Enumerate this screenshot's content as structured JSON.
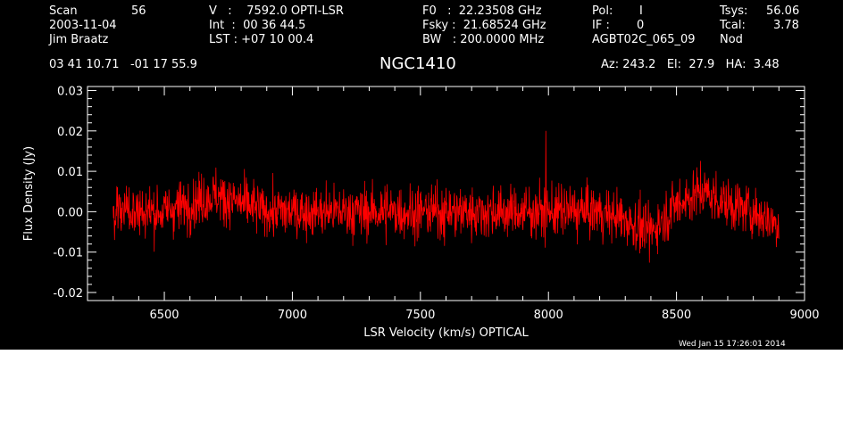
{
  "header": {
    "scan_label": "Scan",
    "scan_value": "56",
    "date": "2003-11-04",
    "observer": "Jim Braatz",
    "coords": "03 41 10.71   -01 17 55.9",
    "v_line": "V   :    7592.0 OPTI-LSR",
    "int_line": "Int  :  00 36 44.5",
    "lst_line": "LST : +07 10 00.4",
    "f0_line": "F0   :  22.23508 GHz",
    "fsky_line": "Fsky :  21.68524 GHz",
    "bw_line": "BW   : 200.0000 MHz",
    "pol_label": "Pol:",
    "pol_value": "I",
    "if_label": "IF :",
    "if_value": "0",
    "project": "AGBT02C_065_09",
    "tsys_label": "Tsys:",
    "tsys_value": "56.06",
    "tcal_label": "Tcal:",
    "tcal_value": "3.78",
    "mode": "Nod",
    "az_line": "Az: 243.2   El:  27.9   HA:  3.48",
    "source": "NGC1410"
  },
  "footer": {
    "timestamp": "Wed Jan 15 17:26:01 2014"
  },
  "colors": {
    "background": "#000000",
    "axes": "#ffffff",
    "series": "#ff0000"
  },
  "chart_data": {
    "type": "line",
    "title": "NGC1410",
    "xlabel": "LSR Velocity (km/s) OPTICAL",
    "ylabel": "Flux Density (Jy)",
    "xlim": [
      6200,
      9000
    ],
    "ylim": [
      -0.022,
      0.031
    ],
    "x_ticks": [
      6500,
      7000,
      7500,
      8000,
      8500,
      9000
    ],
    "y_ticks": [
      -0.02,
      -0.01,
      0.0,
      0.01,
      0.02,
      0.03
    ],
    "x_tick_labels": [
      "6500",
      "7000",
      "7500",
      "8000",
      "8500",
      "9000"
    ],
    "y_tick_labels": [
      "-0.02",
      "-0.01",
      "0.00",
      "0.01",
      "0.02",
      "0.03"
    ],
    "grid": false,
    "series": [
      {
        "color": "#ff0000",
        "x": [
          6300,
          6400,
          6500,
          6600,
          6700,
          6800,
          6900,
          7000,
          7100,
          7200,
          7300,
          7400,
          7500,
          7600,
          7700,
          7800,
          7900,
          8000,
          8100,
          8200,
          8300,
          8400,
          8500,
          8600,
          8700,
          8800,
          8900
        ],
        "y": [
          0.0,
          0.0,
          0.0,
          0.002,
          0.004,
          0.002,
          0.0,
          0.0,
          0.0,
          0.0,
          0.0,
          0.0,
          0.0,
          0.0,
          0.0,
          0.0,
          0.0,
          0.0,
          0.0,
          0.0,
          -0.002,
          -0.005,
          0.002,
          0.005,
          0.002,
          0.0,
          -0.003
        ],
        "noise_rms": 0.005,
        "spike": {
          "x": 7990,
          "y": 0.02
        }
      }
    ]
  }
}
